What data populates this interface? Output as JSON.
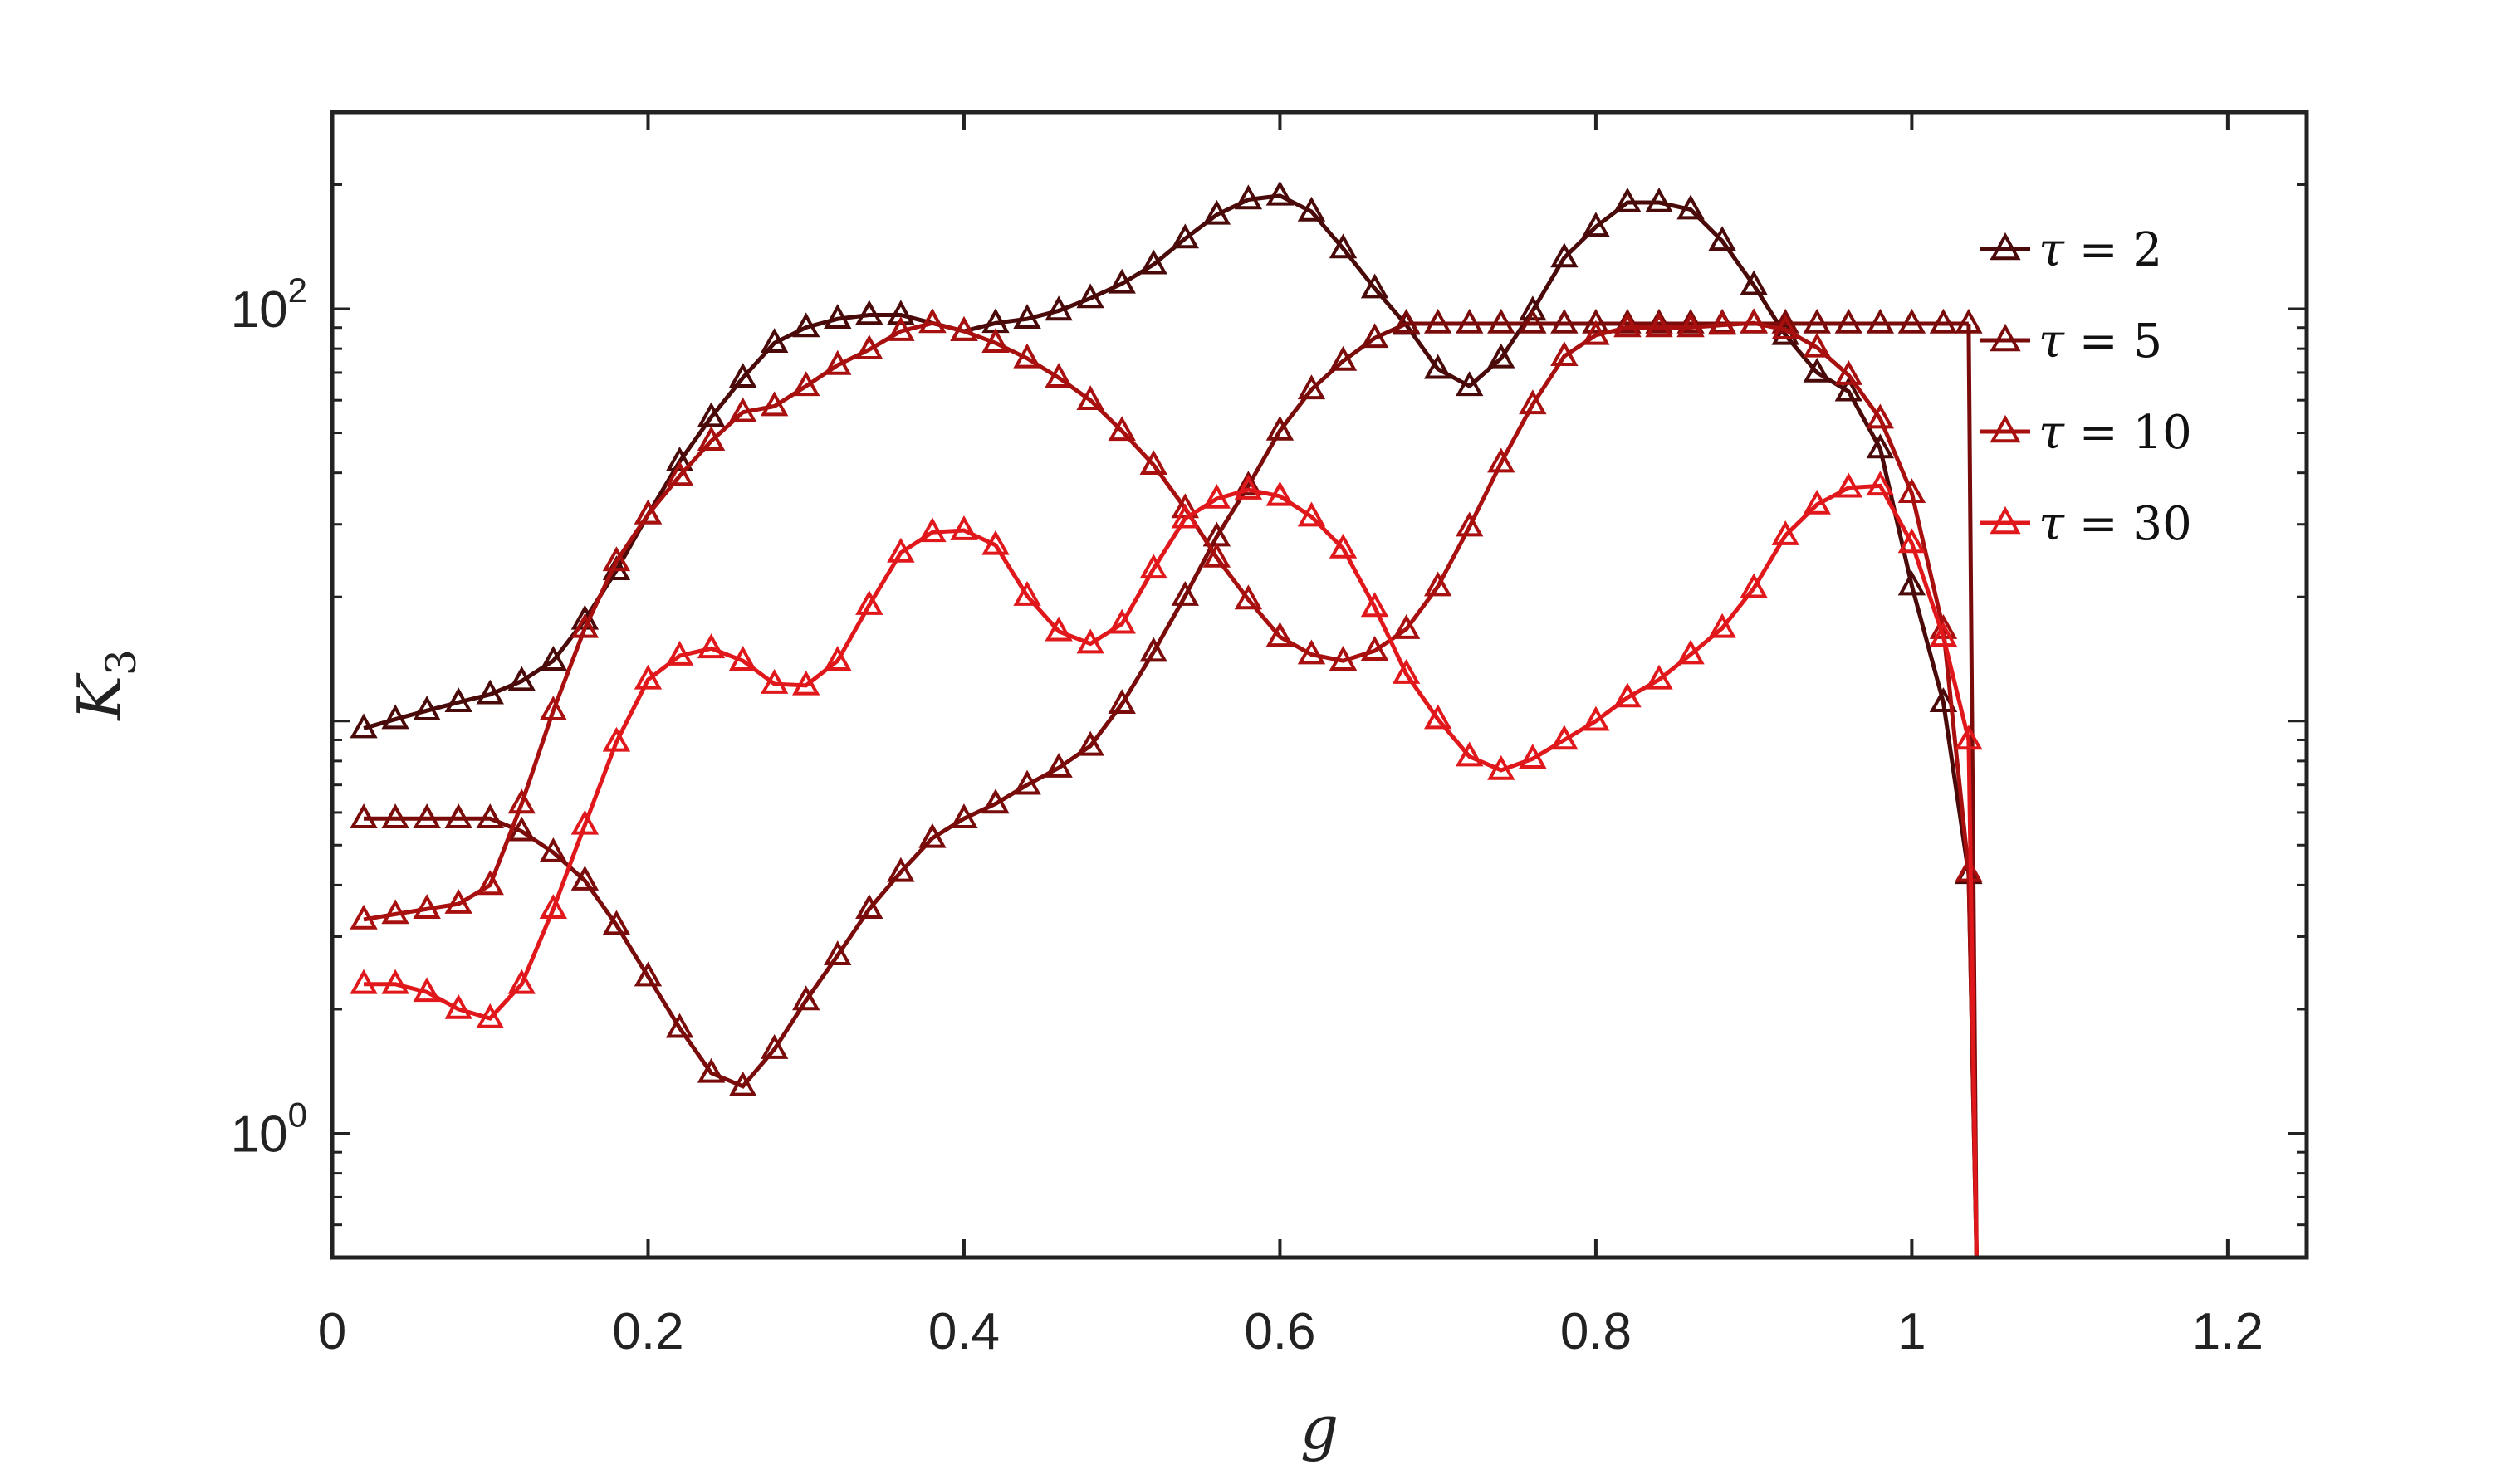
{
  "chart_data": {
    "type": "line",
    "xlabel": "g",
    "ylabel": "K_3",
    "yscale": "log",
    "xlim": [
      0,
      1.25
    ],
    "ylim": [
      0.5,
      300
    ],
    "x_ticks": [
      "0",
      "0.2",
      "0.4",
      "0.6",
      "0.8",
      "1",
      "1.2"
    ],
    "x_tick_values": [
      0,
      0.2,
      0.4,
      0.6,
      0.8,
      1,
      1.2
    ],
    "y_ticks": [
      {
        "base": "10",
        "exp": "0",
        "value": 1
      },
      {
        "base": "10",
        "exp": "2",
        "value": 100
      }
    ],
    "legend_position": "top-right",
    "marker": "triangle",
    "grid": false,
    "series": [
      {
        "name": "τ = 2",
        "label_sym": "τ",
        "label_rest": " = 2",
        "color": "#4a0a0a",
        "x": [
          0.02,
          0.04,
          0.06,
          0.08,
          0.1,
          0.12,
          0.14,
          0.16,
          0.18,
          0.2,
          0.22,
          0.24,
          0.26,
          0.28,
          0.3,
          0.32,
          0.34,
          0.36,
          0.38,
          0.4,
          0.42,
          0.44,
          0.46,
          0.48,
          0.5,
          0.52,
          0.54,
          0.56,
          0.58,
          0.6,
          0.62,
          0.64,
          0.66,
          0.68,
          0.7,
          0.72,
          0.74,
          0.76,
          0.78,
          0.8,
          0.82,
          0.84,
          0.86,
          0.88,
          0.9,
          0.92,
          0.94,
          0.96,
          0.98,
          1.0,
          1.02,
          1.036
        ],
        "y": [
          9.6,
          10.1,
          10.6,
          11.1,
          11.6,
          12.5,
          14.0,
          17.6,
          23.2,
          31.7,
          42.6,
          54.6,
          68.0,
          82.6,
          90.1,
          94.5,
          96.6,
          96.6,
          92.3,
          88.2,
          92.3,
          94.5,
          98.9,
          106,
          115,
          128,
          148,
          169,
          184,
          188,
          172,
          140,
          112,
          91.3,
          71.4,
          64.9,
          75.8,
          98.9,
          133,
          158,
          181,
          181,
          174,
          146,
          114,
          86.3,
          70.0,
          63.0,
          45.8,
          21.3,
          11.1,
          4.25
        ]
      },
      {
        "name": "τ = 5",
        "label_sym": "τ",
        "label_rest": " = 5",
        "color": "#7a0b0b",
        "x": [
          0.02,
          0.04,
          0.06,
          0.08,
          0.1,
          0.12,
          0.14,
          0.16,
          0.18,
          0.2,
          0.22,
          0.24,
          0.26,
          0.28,
          0.3,
          0.32,
          0.34,
          0.36,
          0.38,
          0.4,
          0.42,
          0.44,
          0.46,
          0.48,
          0.5,
          0.52,
          0.54,
          0.56,
          0.58,
          0.6,
          0.62,
          0.64,
          0.66,
          0.68,
          0.7,
          0.72,
          0.74,
          0.76,
          0.78,
          0.8,
          0.82,
          0.84,
          0.86,
          0.88,
          0.9,
          0.92,
          0.94,
          0.96,
          0.98,
          1.0,
          1.02,
          1.036
        ],
        "y": [
          5.8,
          5.8,
          5.8,
          5.8,
          5.8,
          5.4,
          4.8,
          4.1,
          3.2,
          2.4,
          1.8,
          1.4,
          1.3,
          1.6,
          2.1,
          2.7,
          3.5,
          4.3,
          5.2,
          5.8,
          6.3,
          7.0,
          7.7,
          8.7,
          11.0,
          14.7,
          20.1,
          28.0,
          37.2,
          50.6,
          63.7,
          74.7,
          84.9,
          92.0,
          92.0,
          92.0,
          92.0,
          92.0,
          92.0,
          92.0,
          92.0,
          92.0,
          92.0,
          92.0,
          92.0,
          92.0,
          92.0,
          92.0,
          92.0,
          92.0,
          92.0,
          92.0
        ]
      },
      {
        "name": "τ = 10",
        "label_sym": "τ",
        "label_rest": " = 10",
        "color": "#a80f0f",
        "x": [
          0.02,
          0.04,
          0.06,
          0.08,
          0.1,
          0.12,
          0.14,
          0.16,
          0.18,
          0.2,
          0.22,
          0.24,
          0.26,
          0.28,
          0.3,
          0.32,
          0.34,
          0.36,
          0.38,
          0.4,
          0.42,
          0.44,
          0.46,
          0.48,
          0.5,
          0.52,
          0.54,
          0.56,
          0.58,
          0.6,
          0.62,
          0.64,
          0.66,
          0.68,
          0.7,
          0.72,
          0.74,
          0.76,
          0.78,
          0.8,
          0.82,
          0.84,
          0.86,
          0.88,
          0.9,
          0.92,
          0.94,
          0.96,
          0.98,
          1.0,
          1.02,
          1.036
        ],
        "y": [
          3.3,
          3.4,
          3.5,
          3.6,
          4.0,
          6.3,
          10.6,
          16.8,
          24.4,
          31.7,
          39.3,
          47.8,
          56.1,
          58.0,
          64.9,
          73.0,
          79.6,
          88.2,
          92.3,
          88.2,
          82.6,
          75.8,
          68.0,
          60.0,
          50.5,
          41.8,
          32.8,
          24.9,
          19.7,
          16.0,
          14.5,
          14.0,
          14.8,
          16.7,
          21.2,
          29.6,
          42.3,
          58.6,
          76.7,
          86.3,
          90.1,
          90.1,
          90.1,
          91.3,
          92.3,
          89.0,
          80.5,
          69.0,
          54.1,
          35.7,
          16.7,
          4.3
        ]
      },
      {
        "name": "τ = 30",
        "label_sym": "τ",
        "label_rest": " = 30",
        "color": "#e0181c",
        "x": [
          0.02,
          0.04,
          0.06,
          0.08,
          0.1,
          0.12,
          0.14,
          0.16,
          0.18,
          0.2,
          0.22,
          0.24,
          0.26,
          0.28,
          0.3,
          0.32,
          0.34,
          0.36,
          0.38,
          0.4,
          0.42,
          0.44,
          0.46,
          0.48,
          0.5,
          0.52,
          0.54,
          0.56,
          0.58,
          0.6,
          0.62,
          0.64,
          0.66,
          0.68,
          0.7,
          0.72,
          0.74,
          0.76,
          0.78,
          0.8,
          0.82,
          0.84,
          0.86,
          0.88,
          0.9,
          0.92,
          0.94,
          0.96,
          0.98,
          1.0,
          1.02,
          1.036
        ],
        "y": [
          2.3,
          2.3,
          2.2,
          2.0,
          1.9,
          2.3,
          3.5,
          5.6,
          8.9,
          12.6,
          14.4,
          15.0,
          14.0,
          12.3,
          12.2,
          14.0,
          19.1,
          25.6,
          28.7,
          29.0,
          26.7,
          20.1,
          16.5,
          15.4,
          17.2,
          23.4,
          31.0,
          34.6,
          36.4,
          35.1,
          31.3,
          26.2,
          18.9,
          13.0,
          10.1,
          8.2,
          7.6,
          8.1,
          9.0,
          10.0,
          11.4,
          12.6,
          14.5,
          16.8,
          21.0,
          28.2,
          33.5,
          36.8,
          37.2,
          27.0,
          16.0,
          9.0
        ]
      }
    ]
  }
}
